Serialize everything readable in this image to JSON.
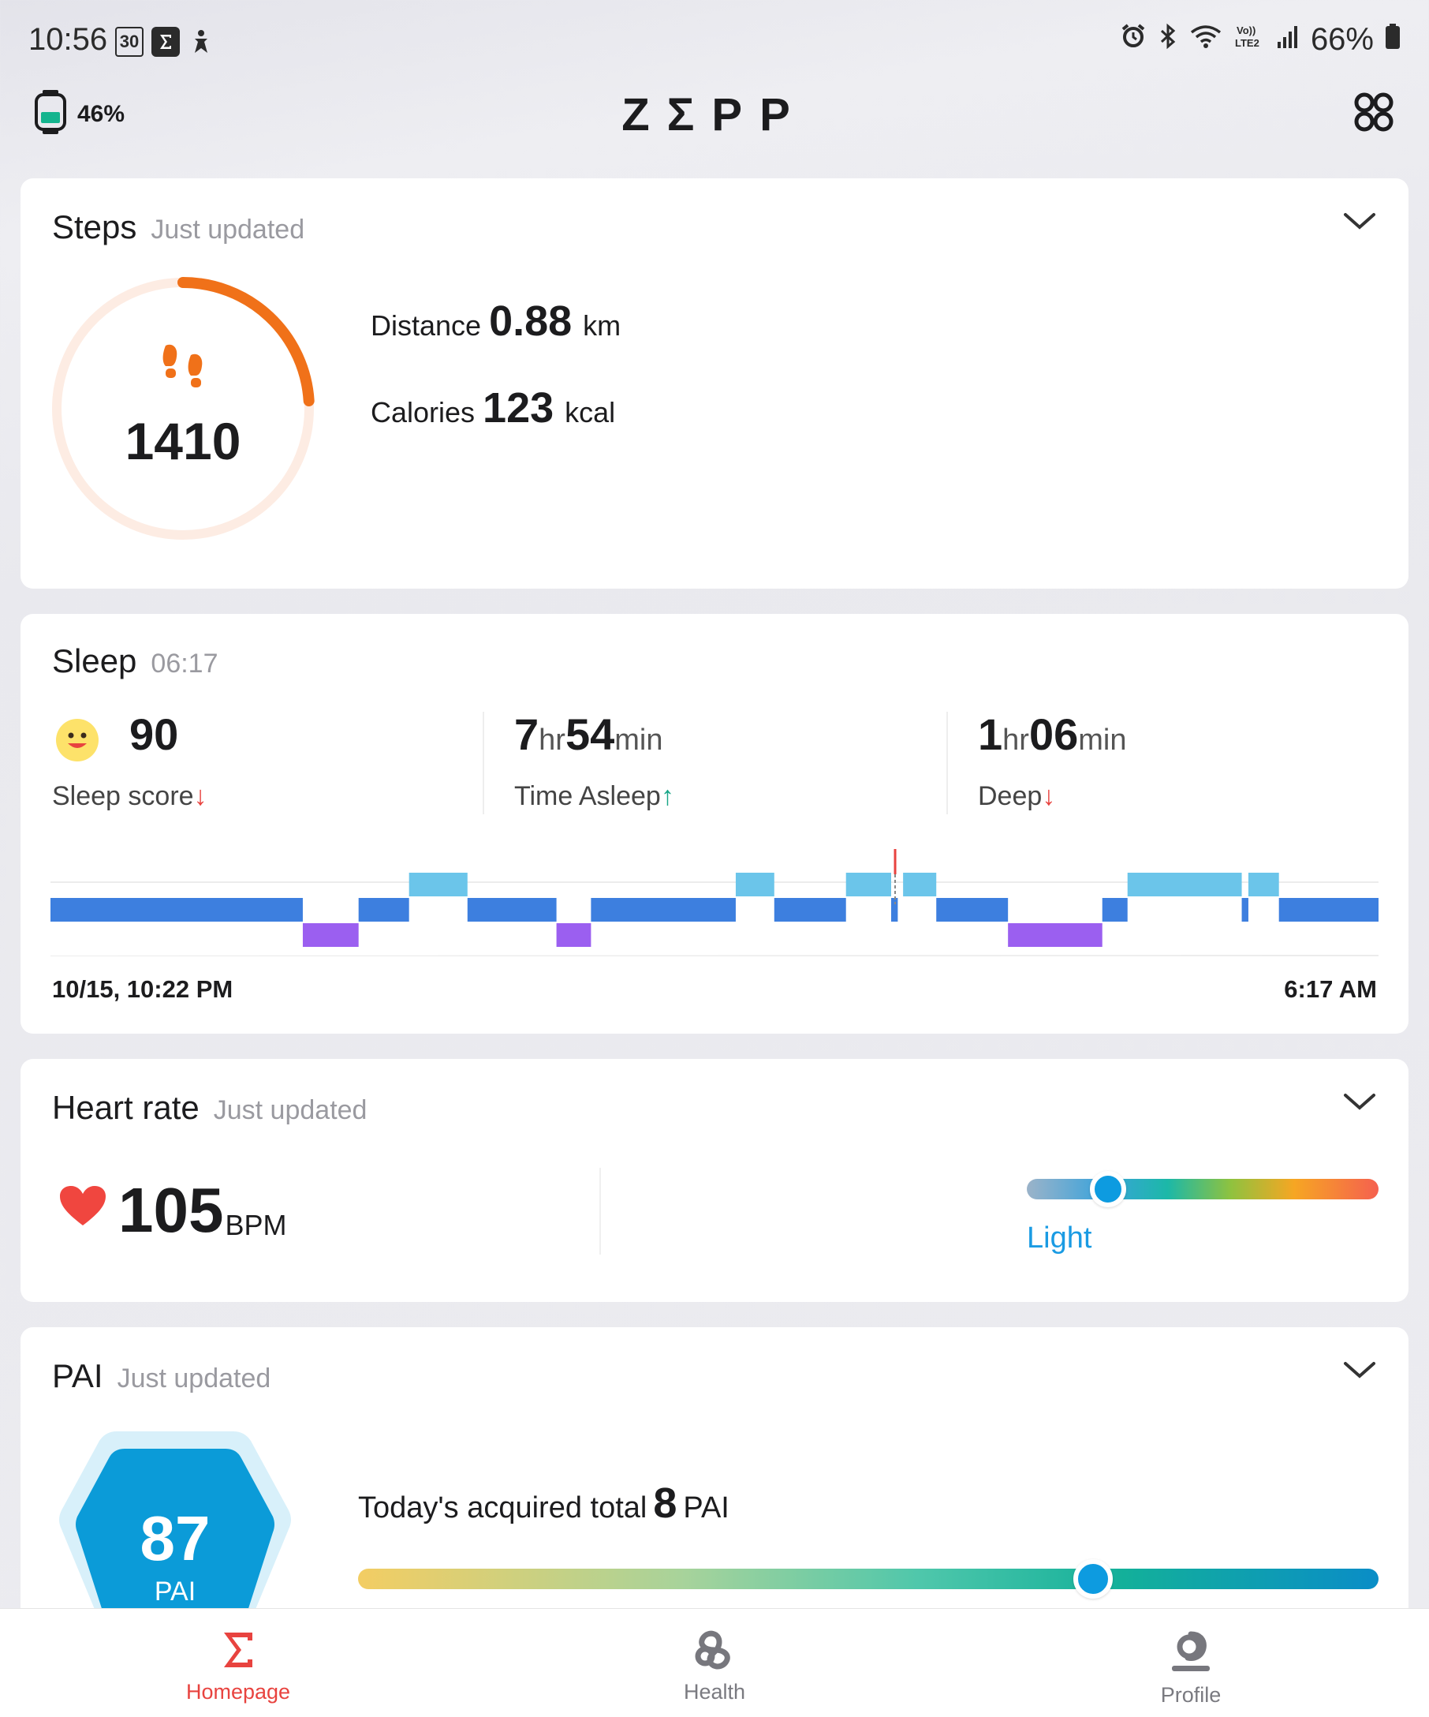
{
  "status_bar": {
    "time": "10:56",
    "left_icons": [
      "thirty-badge-icon",
      "sigma-app-icon",
      "accessibility-icon"
    ],
    "thirty_badge": "30",
    "right_icons": [
      "alarm-icon",
      "bluetooth-icon",
      "wifi-icon",
      "volte-icon",
      "signal-icon",
      "battery-icon"
    ],
    "battery": "66%"
  },
  "header": {
    "device_battery": "46%",
    "logo": "ZΣPP",
    "apps_icon": "apps-grid-icon"
  },
  "steps": {
    "title": "Steps",
    "updated": "Just updated",
    "count": "1410",
    "goal_progress": 0.24,
    "distance_label": "Distance",
    "distance_value": "0.88",
    "distance_unit": "km",
    "calories_label": "Calories",
    "calories_value": "123",
    "calories_unit": "kcal"
  },
  "sleep": {
    "title": "Sleep",
    "time": "06:17",
    "score_value": "90",
    "score_label": "Sleep score",
    "asleep_hr": "7",
    "asleep_min": "54",
    "asleep_label": "Time Asleep",
    "deep_hr": "1",
    "deep_min": "06",
    "deep_label": "Deep",
    "unit_hr": "hr",
    "unit_min": "min",
    "arrow_down": "↓",
    "arrow_up": "↑",
    "start_label": "10/15, 10:22 PM",
    "end_label": "6:17 AM",
    "stages": [
      {
        "stage": "light",
        "start": 0.0,
        "end": 0.19
      },
      {
        "stage": "deep",
        "start": 0.19,
        "end": 0.232
      },
      {
        "stage": "light",
        "start": 0.232,
        "end": 0.27
      },
      {
        "stage": "awake",
        "start": 0.27,
        "end": 0.314
      },
      {
        "stage": "light",
        "start": 0.314,
        "end": 0.381
      },
      {
        "stage": "deep",
        "start": 0.381,
        "end": 0.407
      },
      {
        "stage": "light",
        "start": 0.407,
        "end": 0.516
      },
      {
        "stage": "awake",
        "start": 0.516,
        "end": 0.545
      },
      {
        "stage": "light",
        "start": 0.545,
        "end": 0.599
      },
      {
        "stage": "awake",
        "start": 0.599,
        "end": 0.633
      },
      {
        "stage": "light",
        "start": 0.633,
        "end": 0.638
      },
      {
        "stage": "awake",
        "start": 0.642,
        "end": 0.667
      },
      {
        "stage": "light",
        "start": 0.667,
        "end": 0.721
      },
      {
        "stage": "deep",
        "start": 0.721,
        "end": 0.792
      },
      {
        "stage": "light",
        "start": 0.792,
        "end": 0.811
      },
      {
        "stage": "awake",
        "start": 0.811,
        "end": 0.897
      },
      {
        "stage": "light",
        "start": 0.897,
        "end": 0.902
      },
      {
        "stage": "awake",
        "start": 0.902,
        "end": 0.925
      },
      {
        "stage": "light",
        "start": 0.925,
        "end": 1.0
      }
    ],
    "marker_position": 0.636,
    "colors": {
      "light": "#3d7fdf",
      "deep": "#9b5ff0",
      "awake": "#6bc5ea",
      "marker": "#e8433f"
    }
  },
  "heart_rate": {
    "title": "Heart rate",
    "updated": "Just updated",
    "value": "105",
    "unit": "BPM",
    "zone": "Light",
    "zone_position": 0.23
  },
  "pai": {
    "title": "PAI",
    "updated": "Just updated",
    "value": "87",
    "label": "PAI",
    "today_prefix": "Today's acquired total",
    "today_value": "8",
    "today_unit": "PAI",
    "progress": 0.72
  },
  "nav": [
    {
      "label": "Homepage",
      "icon": "sigma-icon",
      "active": true
    },
    {
      "label": "Health",
      "icon": "health-knot-icon",
      "active": false
    },
    {
      "label": "Profile",
      "icon": "profile-icon",
      "active": false
    }
  ],
  "colors": {
    "accent": "#e8433f",
    "steps_orange": "#f07119",
    "pai_blue": "#0d9be0",
    "zone_blue": "#1a9be3",
    "nav_inactive": "#7a7a80"
  }
}
